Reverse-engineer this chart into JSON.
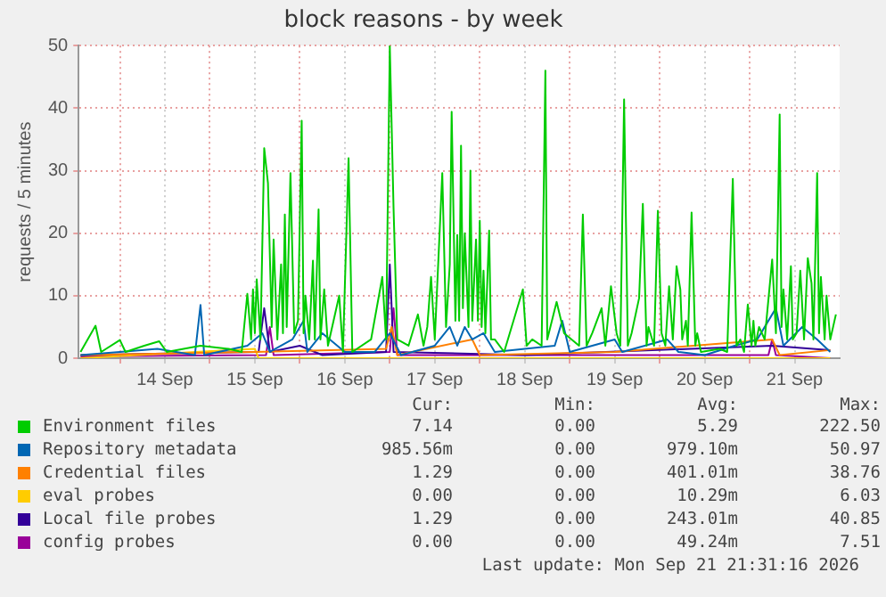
{
  "chart_data": {
    "type": "line",
    "title": "block reasons - by week",
    "ylabel": "requests / 5 minutes",
    "xlim": [
      "2026-09-13T13:00",
      "2026-09-22T00:00"
    ],
    "xticks": [
      {
        "value": "2026-09-14T00:00",
        "label": null
      },
      {
        "value": "2026-09-14T12:00",
        "label": "14 Sep"
      },
      {
        "value": "2026-09-15T00:00",
        "label": null
      },
      {
        "value": "2026-09-15T12:00",
        "label": "15 Sep"
      },
      {
        "value": "2026-09-16T00:00",
        "label": null
      },
      {
        "value": "2026-09-16T12:00",
        "label": "16 Sep"
      },
      {
        "value": "2026-09-17T00:00",
        "label": null
      },
      {
        "value": "2026-09-17T12:00",
        "label": "17 Sep"
      },
      {
        "value": "2026-09-18T00:00",
        "label": null
      },
      {
        "value": "2026-09-18T12:00",
        "label": "18 Sep"
      },
      {
        "value": "2026-09-19T00:00",
        "label": null
      },
      {
        "value": "2026-09-19T12:00",
        "label": "19 Sep"
      },
      {
        "value": "2026-09-20T00:00",
        "label": null
      },
      {
        "value": "2026-09-20T12:00",
        "label": "20 Sep"
      },
      {
        "value": "2026-09-21T00:00",
        "label": null
      },
      {
        "value": "2026-09-21T12:00",
        "label": "21 Sep"
      }
    ],
    "ylim": [
      0,
      50
    ],
    "yticks": [
      0,
      10,
      20,
      30,
      40,
      50
    ],
    "grid": true,
    "legend": "bottom",
    "series": [
      {
        "name": "Environment files",
        "color": "#00cc00",
        "x": [
          "2026-09-13T13:30",
          "2026-09-13T17:30",
          "2026-09-13T19:00",
          "2026-09-14T00:00",
          "2026-09-14T01:30",
          "2026-09-14T06:30",
          "2026-09-14T10:30",
          "2026-09-14T12:30",
          "2026-09-14T21:30",
          "2026-09-15T05:00",
          "2026-09-15T08:30",
          "2026-09-15T10:00",
          "2026-09-15T11:00",
          "2026-09-15T11:30",
          "2026-09-15T12:00",
          "2026-09-15T12:30",
          "2026-09-15T13:30",
          "2026-09-15T14:30",
          "2026-09-15T15:30",
          "2026-09-15T16:30",
          "2026-09-15T17:00",
          "2026-09-15T18:00",
          "2026-09-15T19:00",
          "2026-09-15T19:30",
          "2026-09-15T20:00",
          "2026-09-15T20:30",
          "2026-09-15T21:30",
          "2026-09-15T22:30",
          "2026-09-15T23:30",
          "2026-09-16T00:30",
          "2026-09-16T01:00",
          "2026-09-16T01:30",
          "2026-09-16T02:30",
          "2026-09-16T03:30",
          "2026-09-16T04:00",
          "2026-09-16T05:00",
          "2026-09-16T05:30",
          "2026-09-16T06:30",
          "2026-09-16T07:30",
          "2026-09-16T10:30",
          "2026-09-16T11:30",
          "2026-09-16T13:00",
          "2026-09-16T14:00",
          "2026-09-16T19:00",
          "2026-09-16T22:00",
          "2026-09-16T23:00",
          "2026-09-17T00:00",
          "2026-09-17T01:00",
          "2026-09-17T02:00",
          "2026-09-17T05:00",
          "2026-09-17T07:30",
          "2026-09-17T09:00",
          "2026-09-17T10:00",
          "2026-09-17T11:00",
          "2026-09-17T12:00",
          "2026-09-17T14:00",
          "2026-09-17T15:00",
          "2026-09-17T16:00",
          "2026-09-17T16:30",
          "2026-09-17T17:30",
          "2026-09-17T18:00",
          "2026-09-17T18:30",
          "2026-09-17T19:00",
          "2026-09-17T19:30",
          "2026-09-17T20:00",
          "2026-09-17T21:00",
          "2026-09-17T21:30",
          "2026-09-17T22:00",
          "2026-09-17T23:00",
          "2026-09-17T23:30",
          "2026-09-18T00:00",
          "2026-09-18T00:30",
          "2026-09-18T01:00",
          "2026-09-18T01:30",
          "2026-09-18T02:30",
          "2026-09-18T03:00",
          "2026-09-18T04:00",
          "2026-09-18T06:30",
          "2026-09-18T11:30",
          "2026-09-18T12:30",
          "2026-09-18T14:00",
          "2026-09-18T16:30",
          "2026-09-18T17:30",
          "2026-09-18T18:00",
          "2026-09-18T20:30",
          "2026-09-18T22:30",
          "2026-09-19T02:30",
          "2026-09-19T03:30",
          "2026-09-19T04:30",
          "2026-09-19T06:00",
          "2026-09-19T08:30",
          "2026-09-19T09:30",
          "2026-09-19T11:00",
          "2026-09-19T12:30",
          "2026-09-19T13:30",
          "2026-09-19T14:30",
          "2026-09-19T15:30",
          "2026-09-19T16:30",
          "2026-09-19T18:30",
          "2026-09-19T19:30",
          "2026-09-19T20:30",
          "2026-09-19T21:00",
          "2026-09-19T22:30",
          "2026-09-19T23:30",
          "2026-09-20T00:30",
          "2026-09-20T01:30",
          "2026-09-20T02:30",
          "2026-09-20T03:30",
          "2026-09-20T04:30",
          "2026-09-20T05:30",
          "2026-09-20T06:00",
          "2026-09-20T07:00",
          "2026-09-20T07:30",
          "2026-09-20T08:30",
          "2026-09-20T09:30",
          "2026-09-20T10:00",
          "2026-09-20T11:00",
          "2026-09-20T16:00",
          "2026-09-20T18:00",
          "2026-09-20T19:30",
          "2026-09-20T20:30",
          "2026-09-20T21:30",
          "2026-09-20T22:30",
          "2026-09-20T23:30",
          "2026-09-21T00:30",
          "2026-09-21T01:00",
          "2026-09-21T01:30",
          "2026-09-21T02:30",
          "2026-09-21T04:00",
          "2026-09-21T06:00",
          "2026-09-21T07:00",
          "2026-09-21T08:00",
          "2026-09-21T08:30",
          "2026-09-21T09:00",
          "2026-09-21T10:00",
          "2026-09-21T11:00",
          "2026-09-21T11:30",
          "2026-09-21T12:30",
          "2026-09-21T13:30",
          "2026-09-21T14:30",
          "2026-09-21T15:30",
          "2026-09-21T16:30",
          "2026-09-21T17:00",
          "2026-09-21T18:00",
          "2026-09-21T18:30",
          "2026-09-21T19:00",
          "2026-09-21T20:00",
          "2026-09-21T20:30",
          "2026-09-21T21:30",
          "2026-09-21T23:00"
        ],
        "values": [
          1,
          5.2,
          1,
          2.9,
          1,
          2,
          2.7,
          1,
          2,
          1.5,
          1,
          10.3,
          3,
          11,
          4,
          12.6,
          3,
          33.6,
          28,
          5,
          19,
          3,
          15,
          4,
          23,
          5,
          29.6,
          4,
          6,
          38,
          4,
          10,
          3,
          15.6,
          3,
          23.8,
          3,
          11,
          2,
          10,
          1,
          32,
          1,
          3,
          13,
          3,
          50,
          24,
          3,
          2,
          7,
          2,
          5,
          13,
          3,
          29.6,
          5,
          15,
          39.4,
          6,
          19.7,
          6,
          34,
          8,
          20,
          5,
          30,
          6,
          19,
          6,
          22,
          5,
          14,
          4,
          20.4,
          3,
          3,
          1,
          11,
          2,
          3,
          2,
          46,
          3,
          9,
          4,
          2,
          23,
          2,
          4,
          8,
          2,
          11.5,
          4,
          2,
          41.4,
          2,
          4,
          9.6,
          24.7,
          2,
          5,
          2,
          23.6,
          4,
          2,
          11.5,
          3,
          14.7,
          11,
          3,
          6,
          2,
          23.3,
          2,
          4,
          1,
          1.5,
          1,
          28.7,
          2,
          3,
          1,
          8.6,
          2,
          6,
          2,
          5,
          3,
          15.8,
          4,
          39,
          5,
          11,
          3,
          14.7,
          3,
          4,
          14,
          3,
          16,
          12,
          3,
          29.6,
          4,
          13,
          3,
          10,
          3,
          7
        ]
      },
      {
        "name": "Repository metadata",
        "color": "#0066b3",
        "x": [
          "2026-09-13T13:30",
          "2026-09-14T00:00",
          "2026-09-14T10:00",
          "2026-09-14T20:00",
          "2026-09-14T21:30",
          "2026-09-14T22:30",
          "2026-09-15T10:00",
          "2026-09-15T14:00",
          "2026-09-15T16:00",
          "2026-09-15T22:00",
          "2026-09-16T01:00",
          "2026-09-16T02:00",
          "2026-09-16T06:00",
          "2026-09-16T12:00",
          "2026-09-16T20:00",
          "2026-09-17T00:00",
          "2026-09-17T03:00",
          "2026-09-17T12:00",
          "2026-09-17T16:00",
          "2026-09-17T18:00",
          "2026-09-17T20:00",
          "2026-09-17T22:00",
          "2026-09-18T01:00",
          "2026-09-18T04:00",
          "2026-09-18T12:00",
          "2026-09-18T20:00",
          "2026-09-18T22:00",
          "2026-09-19T00:00",
          "2026-09-19T06:00",
          "2026-09-19T12:00",
          "2026-09-19T14:00",
          "2026-09-19T20:00",
          "2026-09-20T02:00",
          "2026-09-20T05:00",
          "2026-09-20T12:00",
          "2026-09-20T20:00",
          "2026-09-21T02:00",
          "2026-09-21T07:00",
          "2026-09-21T09:00",
          "2026-09-21T14:00",
          "2026-09-21T18:00",
          "2026-09-21T21:30"
        ],
        "values": [
          0.5,
          1,
          1.5,
          0.5,
          8.5,
          0.5,
          2,
          4,
          1,
          3,
          6,
          1,
          4,
          1,
          1,
          4,
          0.5,
          2,
          5,
          2,
          5,
          3,
          4,
          1,
          1.5,
          2,
          6,
          1,
          2,
          3,
          1,
          2,
          3,
          1,
          0.5,
          2,
          3,
          8,
          2,
          5,
          3,
          1
        ]
      },
      {
        "name": "Credential files",
        "color": "#ff8000",
        "x": [
          "2026-09-13T13:30",
          "2026-09-15T12:00",
          "2026-09-16T23:00",
          "2026-09-17T00:30",
          "2026-09-17T02:00",
          "2026-09-17T22:00",
          "2026-09-18T00:00",
          "2026-09-19T12:00",
          "2026-09-21T06:00",
          "2026-09-21T08:00",
          "2026-09-21T21:30"
        ],
        "values": [
          0.5,
          1,
          1.5,
          5,
          0.5,
          3,
          0.5,
          1,
          3,
          0.5,
          1.3
        ]
      },
      {
        "name": "eval probes",
        "color": "#ffcc00",
        "x": [
          "2026-09-13T13:30",
          "2026-09-15T12:00",
          "2026-09-15T13:00",
          "2026-09-21T21:30"
        ],
        "values": [
          0,
          1.5,
          0,
          0
        ]
      },
      {
        "name": "Local file probes",
        "color": "#330099",
        "x": [
          "2026-09-13T13:30",
          "2026-09-15T13:00",
          "2026-09-15T14:30",
          "2026-09-15T16:00",
          "2026-09-16T00:00",
          "2026-09-16T06:00",
          "2026-09-16T23:00",
          "2026-09-17T00:00",
          "2026-09-17T01:00",
          "2026-09-18T12:00",
          "2026-09-21T06:00",
          "2026-09-21T21:30"
        ],
        "values": [
          0.5,
          1,
          8,
          1,
          2,
          0.5,
          1,
          15,
          1,
          0.5,
          2,
          1.3
        ]
      },
      {
        "name": "config probes",
        "color": "#990099",
        "x": [
          "2026-09-13T13:30",
          "2026-09-15T15:00",
          "2026-09-15T16:00",
          "2026-09-15T17:00",
          "2026-09-17T00:00",
          "2026-09-17T01:00",
          "2026-09-17T02:00",
          "2026-09-21T05:00",
          "2026-09-21T06:00",
          "2026-09-21T07:00",
          "2026-09-21T21:30"
        ],
        "values": [
          0.3,
          0.5,
          5,
          0.5,
          1,
          8,
          0.5,
          0.5,
          3,
          0.5,
          0
        ]
      }
    ],
    "annotations": [
      "Cur:",
      "Min:",
      "Avg:",
      "Max:",
      "7.14",
      "0.00",
      "5.29",
      "222.50",
      "985.56m",
      "0.00",
      "979.10m",
      "50.97",
      "1.29",
      "0.00",
      "401.01m",
      "38.76",
      "0.00",
      "0.00",
      "10.29m",
      "6.03",
      "1.29",
      "0.00",
      "243.01m",
      "40.85",
      "0.00",
      "0.00",
      "49.24m",
      "7.51",
      "Last update: Mon Sep 21 21:31:16 2026"
    ]
  }
}
